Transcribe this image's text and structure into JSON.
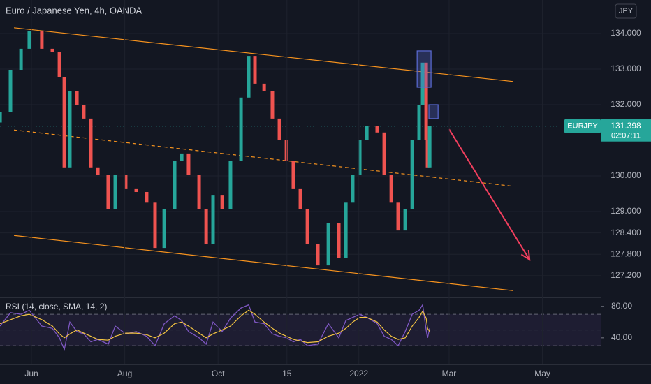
{
  "chart_data": {
    "type": "candlestick",
    "title": "Euro / Japanese Yen, 4h, OANDA",
    "currency_button": "JPY",
    "symbol": "EURJPY",
    "last_price": 131.398,
    "countdown": "02:07:11",
    "up_color": "#26a69a",
    "down_color": "#ef5350",
    "x": [
      -20.5,
      -13.7,
      -6.8,
      -1.4,
      6.8,
      13.7,
      18.3,
      21.5,
      25.1,
      29.7,
      34.2,
      38.8,
      43.4,
      50.2,
      54.8,
      61.6,
      68.5,
      75.3,
      80.8,
      86.8,
      93.6,
      98.2,
      102.7,
      109.6,
      114.2,
      118.7,
      124.7,
      130.1,
      137,
      142,
      146.1,
      152.1,
      157.5,
      162.1,
      166.7,
      171.2,
      175.8,
      180.4,
      187.2,
      194.1,
      200.9,
      205.5,
      210,
      214.6,
      219.2,
      226,
      230.6,
      235.2,
      239.7,
      244.3,
      248.9,
      253.4,
      255.7,
      258,
      258.9,
      260.3
    ],
    "open": [
      131.5,
      131.8,
      132.98,
      133.57,
      134.06,
      133.57,
      133.47,
      132.78,
      130.24,
      132.39,
      132.0,
      131.61,
      130.24,
      130.04,
      129.06,
      130.04,
      129.65,
      129.55,
      129.25,
      127.98,
      129.06,
      130.43,
      130.63,
      130.04,
      129.06,
      128.08,
      129.45,
      129.06,
      130.43,
      132.2,
      133.37,
      132.59,
      132.39,
      131.61,
      131.02,
      130.43,
      129.65,
      129.06,
      128.08,
      127.49,
      128.67,
      127.69,
      129.25,
      130.04,
      131.02,
      131.41,
      131.22,
      130.04,
      129.25,
      128.47,
      129.06,
      131.02,
      132.0,
      133.18,
      131.02,
      130.24
    ],
    "close": [
      131.8,
      132.98,
      133.57,
      134.06,
      133.57,
      133.47,
      132.78,
      130.24,
      132.39,
      132.0,
      131.61,
      130.24,
      130.04,
      129.06,
      130.04,
      129.65,
      129.55,
      129.25,
      127.98,
      129.06,
      130.43,
      130.63,
      130.04,
      129.06,
      128.08,
      129.45,
      129.06,
      130.43,
      132.2,
      133.37,
      132.59,
      132.39,
      131.61,
      131.02,
      130.43,
      129.65,
      129.06,
      128.08,
      127.49,
      128.67,
      127.69,
      129.25,
      130.04,
      131.02,
      131.41,
      131.22,
      130.04,
      129.25,
      128.47,
      129.06,
      131.02,
      132.0,
      133.18,
      131.02,
      130.24,
      131.4
    ],
    "xlim": [
      -20.55,
      372.1
    ],
    "xticks": [
      {
        "value": 0,
        "label": "Jun"
      },
      {
        "value": 61,
        "label": "Aug"
      },
      {
        "value": 122,
        "label": "Oct"
      },
      {
        "value": 167,
        "label": "15"
      },
      {
        "value": 214,
        "label": "2022"
      },
      {
        "value": 273,
        "label": "Mar"
      },
      {
        "value": 334,
        "label": "May"
      }
    ],
    "ylim": [
      126.61,
      134.94
    ],
    "yticks": [
      {
        "value": 134,
        "label": "134.000"
      },
      {
        "value": 133,
        "label": "133.000"
      },
      {
        "value": 132,
        "label": "132.000"
      },
      {
        "value": 130,
        "label": "130.000"
      },
      {
        "value": 129,
        "label": "129.000"
      },
      {
        "value": 128.4,
        "label": "128.400"
      },
      {
        "value": 127.8,
        "label": "127.800"
      },
      {
        "value": 127.2,
        "label": "127.200"
      }
    ],
    "trendlines": [
      {
        "color": "#f7931e",
        "dashed": false,
        "x": [
          -11.4,
          315
        ],
        "y": [
          134.16,
          132.65
        ]
      },
      {
        "color": "#f7931e",
        "dashed": true,
        "x": [
          -11.4,
          315
        ],
        "y": [
          131.29,
          129.71
        ]
      },
      {
        "color": "#f7931e",
        "dashed": false,
        "x": [
          -11.4,
          315
        ],
        "y": [
          128.33,
          126.78
        ]
      }
    ],
    "boxes": [
      {
        "color": "#5b6bd6",
        "x": [
          252.1,
          261.2
        ],
        "y": [
          132.49,
          133.51
        ]
      },
      {
        "color": "#5b6bd6",
        "x": [
          259.8,
          265.8
        ],
        "y": [
          131.61,
          132.0
        ]
      }
    ],
    "arrow": {
      "color": "#f23f5e",
      "x": [
        273,
        325.6
      ],
      "y": [
        131.31,
        127.65
      ]
    },
    "rsi": {
      "label": "RSI (14, close, SMA, 14, 2)",
      "color": "#7e57c2",
      "sma_color": "#f5c542",
      "values": [
        55,
        72,
        70,
        75,
        55,
        52,
        40,
        25,
        60,
        48,
        45,
        35,
        38,
        32,
        55,
        45,
        48,
        42,
        30,
        58,
        68,
        62,
        48,
        40,
        32,
        60,
        48,
        65,
        78,
        82,
        60,
        58,
        45,
        42,
        40,
        35,
        38,
        30,
        32,
        58,
        40,
        62,
        66,
        70,
        66,
        58,
        42,
        38,
        30,
        48,
        70,
        75,
        82,
        50,
        40,
        52
      ],
      "sma": [
        58,
        63,
        68,
        70,
        63,
        55,
        45,
        40,
        45,
        50,
        46,
        42,
        38,
        37,
        42,
        46,
        46,
        44,
        40,
        46,
        58,
        60,
        55,
        46,
        40,
        45,
        50,
        55,
        68,
        75,
        70,
        60,
        52,
        46,
        42,
        38,
        36,
        34,
        35,
        42,
        46,
        52,
        60,
        66,
        66,
        60,
        50,
        42,
        38,
        40,
        55,
        66,
        74,
        65,
        52,
        48
      ],
      "ylim": [
        7,
        89.6
      ],
      "yticks": [
        {
          "value": 80,
          "label": "80.00"
        },
        {
          "value": 40,
          "label": "40.00"
        }
      ],
      "levels": [
        70,
        50,
        30
      ]
    }
  }
}
